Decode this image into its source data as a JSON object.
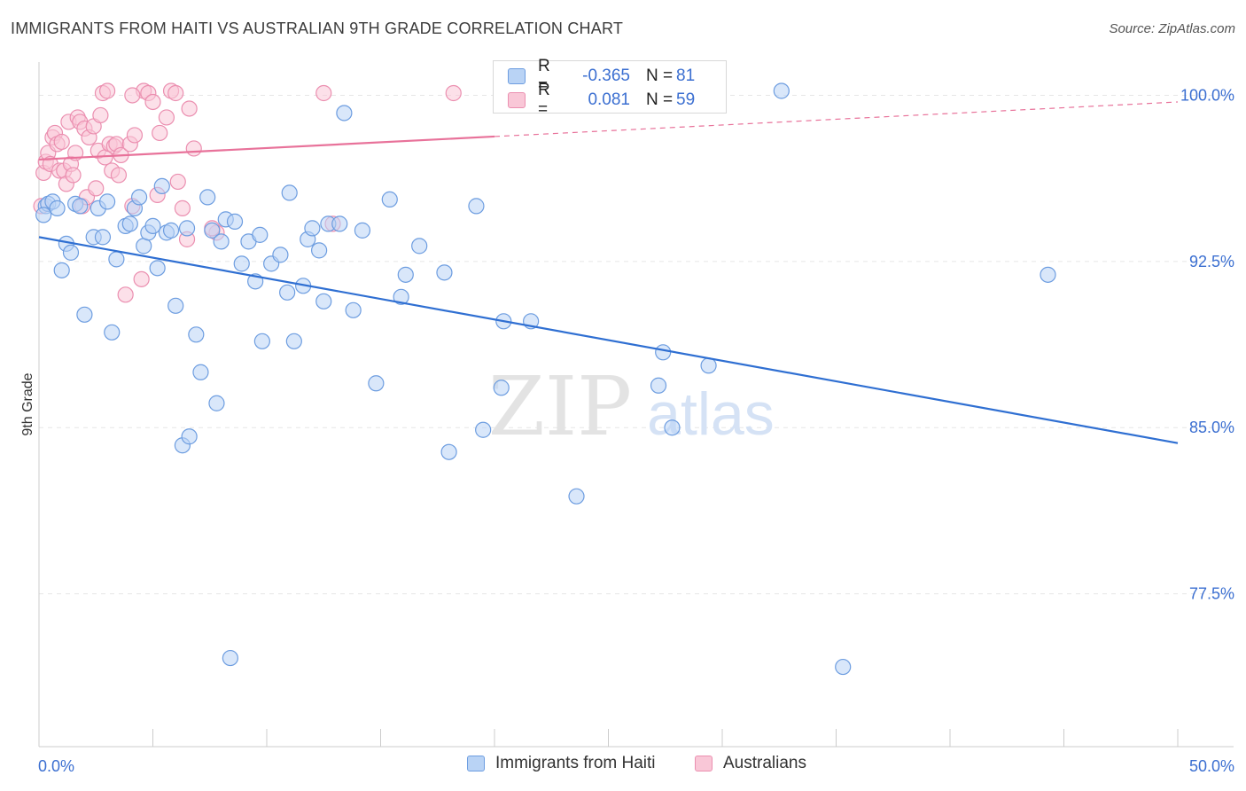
{
  "title": "IMMIGRANTS FROM HAITI VS AUSTRALIAN 9TH GRADE CORRELATION CHART",
  "source": "Source: ZipAtlas.com",
  "watermark": {
    "zip": "ZIP",
    "atlas": "atlas"
  },
  "legend_top": [
    {
      "r_label": "R =",
      "r_value": "-0.365",
      "n_label": "N =",
      "n_value": "81"
    },
    {
      "r_label": "R =",
      "r_value": "0.081",
      "n_label": "N =",
      "n_value": "59"
    }
  ],
  "legend_bottom": [
    {
      "label": "Immigrants from Haiti"
    },
    {
      "label": "Australians"
    }
  ],
  "colors": {
    "blue_fill": "#b9d3f5",
    "blue_stroke": "#6d9de0",
    "blue_line": "#2f6fd2",
    "pink_fill": "#f9c7d7",
    "pink_stroke": "#eb8fb0",
    "pink_line": "#e8729a",
    "tick_label": "#3b6fd1"
  },
  "chart_data": {
    "type": "scatter",
    "title": "IMMIGRANTS FROM HAITI VS AUSTRALIAN 9TH GRADE CORRELATION CHART",
    "xlabel": "",
    "ylabel": "9th Grade",
    "xlim": [
      0,
      50
    ],
    "ylim": [
      70.6,
      101.5
    ],
    "x_tick_labels": [
      {
        "value": 0,
        "label": "0.0%"
      },
      {
        "value": 50,
        "label": "50.0%"
      }
    ],
    "y_tick_labels": [
      {
        "value": 100,
        "label": "100.0%"
      },
      {
        "value": 92.5,
        "label": "92.5%"
      },
      {
        "value": 85,
        "label": "85.0%"
      },
      {
        "value": 77.5,
        "label": "77.5%"
      }
    ],
    "series": [
      {
        "name": "Immigrants from Haiti",
        "color": "blue",
        "trend": {
          "x": [
            0,
            50
          ],
          "y": [
            93.6,
            84.3
          ],
          "dashed_from_x": null
        },
        "points": [
          [
            0.3,
            95.0
          ],
          [
            0.4,
            95.1
          ],
          [
            0.6,
            95.2
          ],
          [
            0.8,
            94.9
          ],
          [
            1.0,
            92.1
          ],
          [
            1.2,
            93.3
          ],
          [
            1.4,
            92.9
          ],
          [
            1.6,
            95.1
          ],
          [
            1.8,
            95.0
          ],
          [
            2.0,
            90.1
          ],
          [
            2.4,
            93.6
          ],
          [
            2.6,
            94.9
          ],
          [
            2.8,
            93.6
          ],
          [
            3.0,
            95.2
          ],
          [
            3.2,
            89.3
          ],
          [
            3.4,
            92.6
          ],
          [
            3.8,
            94.1
          ],
          [
            4.0,
            94.2
          ],
          [
            4.2,
            94.9
          ],
          [
            4.4,
            95.4
          ],
          [
            4.6,
            93.2
          ],
          [
            4.8,
            93.8
          ],
          [
            5.0,
            94.1
          ],
          [
            5.2,
            92.2
          ],
          [
            5.4,
            95.9
          ],
          [
            5.6,
            93.8
          ],
          [
            5.8,
            93.9
          ],
          [
            6.0,
            90.5
          ],
          [
            6.3,
            84.2
          ],
          [
            6.5,
            94.0
          ],
          [
            6.6,
            84.6
          ],
          [
            6.9,
            89.2
          ],
          [
            7.1,
            87.5
          ],
          [
            7.4,
            95.4
          ],
          [
            7.6,
            93.9
          ],
          [
            7.8,
            86.1
          ],
          [
            8.0,
            93.4
          ],
          [
            8.2,
            94.4
          ],
          [
            8.4,
            74.6
          ],
          [
            8.6,
            94.3
          ],
          [
            8.9,
            92.4
          ],
          [
            9.2,
            93.4
          ],
          [
            9.5,
            91.6
          ],
          [
            9.7,
            93.7
          ],
          [
            9.8,
            88.9
          ],
          [
            10.2,
            92.4
          ],
          [
            10.6,
            92.8
          ],
          [
            10.9,
            91.1
          ],
          [
            11.0,
            95.6
          ],
          [
            11.2,
            88.9
          ],
          [
            11.6,
            91.4
          ],
          [
            11.8,
            93.5
          ],
          [
            12.0,
            94.0
          ],
          [
            12.3,
            93.0
          ],
          [
            12.5,
            90.7
          ],
          [
            12.7,
            94.2
          ],
          [
            13.2,
            94.2
          ],
          [
            13.4,
            99.2
          ],
          [
            13.8,
            90.3
          ],
          [
            14.2,
            93.9
          ],
          [
            14.8,
            87.0
          ],
          [
            15.4,
            95.3
          ],
          [
            15.9,
            90.9
          ],
          [
            16.1,
            91.9
          ],
          [
            16.7,
            93.2
          ],
          [
            17.8,
            92.0
          ],
          [
            18.0,
            83.9
          ],
          [
            19.2,
            95.0
          ],
          [
            19.5,
            84.9
          ],
          [
            20.3,
            86.8
          ],
          [
            20.4,
            89.8
          ],
          [
            21.6,
            89.8
          ],
          [
            23.6,
            81.9
          ],
          [
            27.2,
            86.9
          ],
          [
            27.4,
            88.4
          ],
          [
            27.8,
            85.0
          ],
          [
            29.4,
            87.8
          ],
          [
            32.6,
            100.2
          ],
          [
            35.3,
            74.2
          ],
          [
            44.3,
            91.9
          ],
          [
            0.2,
            94.6
          ]
        ]
      },
      {
        "name": "Australians",
        "color": "pink",
        "trend": {
          "x": [
            0,
            50
          ],
          "y": [
            97.1,
            99.7
          ],
          "dashed_from_x": 20.0
        },
        "points": [
          [
            0.2,
            96.5
          ],
          [
            0.3,
            97.0
          ],
          [
            0.4,
            97.4
          ],
          [
            0.5,
            96.9
          ],
          [
            0.6,
            98.1
          ],
          [
            0.7,
            98.3
          ],
          [
            0.8,
            97.8
          ],
          [
            0.9,
            96.6
          ],
          [
            1.0,
            97.9
          ],
          [
            1.1,
            96.6
          ],
          [
            1.2,
            96.0
          ],
          [
            1.3,
            98.8
          ],
          [
            1.4,
            96.9
          ],
          [
            1.5,
            96.4
          ],
          [
            1.6,
            97.4
          ],
          [
            1.7,
            99.0
          ],
          [
            1.8,
            98.8
          ],
          [
            1.9,
            95.0
          ],
          [
            2.0,
            98.5
          ],
          [
            2.1,
            95.4
          ],
          [
            2.2,
            98.1
          ],
          [
            2.4,
            98.6
          ],
          [
            2.5,
            95.8
          ],
          [
            2.6,
            97.5
          ],
          [
            2.7,
            99.1
          ],
          [
            2.8,
            100.1
          ],
          [
            2.9,
            97.2
          ],
          [
            3.0,
            100.2
          ],
          [
            3.1,
            97.8
          ],
          [
            3.2,
            96.6
          ],
          [
            3.3,
            97.7
          ],
          [
            3.4,
            97.8
          ],
          [
            3.5,
            96.4
          ],
          [
            3.6,
            97.3
          ],
          [
            3.8,
            91.0
          ],
          [
            4.0,
            97.8
          ],
          [
            4.1,
            95.0
          ],
          [
            4.2,
            98.2
          ],
          [
            4.5,
            91.7
          ],
          [
            4.6,
            100.2
          ],
          [
            4.8,
            100.1
          ],
          [
            5.0,
            99.7
          ],
          [
            5.2,
            95.5
          ],
          [
            5.3,
            98.3
          ],
          [
            5.6,
            99.0
          ],
          [
            5.8,
            100.2
          ],
          [
            6.0,
            100.1
          ],
          [
            6.1,
            96.1
          ],
          [
            6.3,
            94.9
          ],
          [
            6.5,
            93.5
          ],
          [
            6.6,
            99.4
          ],
          [
            6.8,
            97.6
          ],
          [
            7.8,
            93.8
          ],
          [
            12.5,
            100.1
          ],
          [
            12.9,
            94.2
          ],
          [
            18.2,
            100.1
          ],
          [
            0.1,
            95.0
          ],
          [
            4.1,
            100.0
          ],
          [
            7.6,
            94.0
          ]
        ]
      }
    ]
  }
}
